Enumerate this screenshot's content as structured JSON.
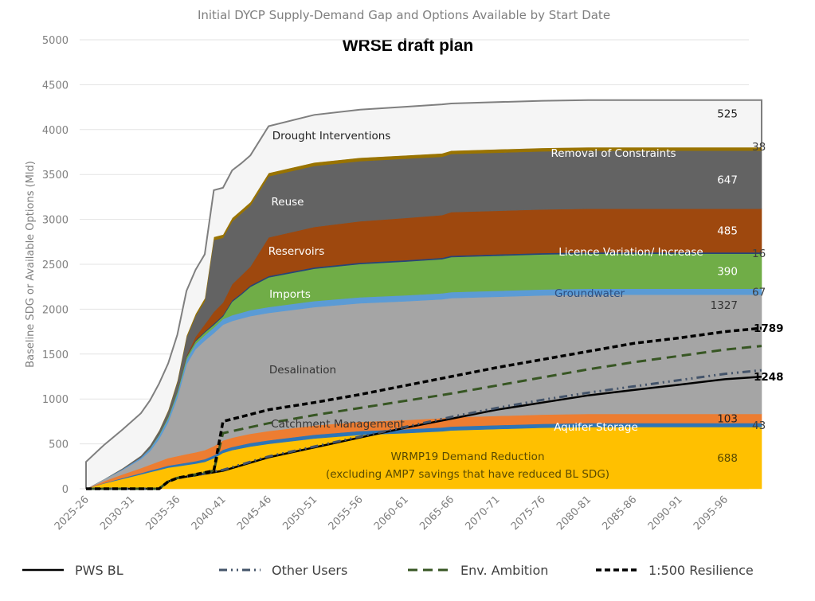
{
  "chart_data": {
    "type": "area",
    "title": "Initial DYCP Supply-Demand Gap and Options Available by Start Date",
    "subtitle": "WRSE draft plan",
    "xlabel": "",
    "ylabel": "Baseline SDG or Available Options (Mld)",
    "ylim": [
      0,
      5000
    ],
    "yticks": [
      0,
      500,
      1000,
      1500,
      2000,
      2500,
      3000,
      3500,
      4000,
      4500,
      5000
    ],
    "grid": true,
    "x_tick_labels": [
      "2025-26",
      "2030-31",
      "2035-36",
      "2040-41",
      "2045-46",
      "2050-51",
      "2055-56",
      "2060-61",
      "2065-66",
      "2070-71",
      "2075-76",
      "2080-81",
      "2085-86",
      "2090-91",
      "2095-96"
    ],
    "x_index": [
      0,
      2,
      4,
      6,
      7,
      8,
      9,
      10,
      11,
      12,
      13,
      14,
      15,
      16,
      17,
      18,
      20,
      25,
      30,
      35,
      39,
      40,
      45,
      50,
      55,
      60,
      74
    ],
    "stacked_series": [
      {
        "name": "WRMP19 Demand Reduction",
        "label": "WRMP19 Demand Reduction",
        "label2": "(excluding AMP7 savings that have reduced BL SDG)",
        "end_value": "688",
        "color": "#ffc000",
        "label_color": "#5a4a00",
        "values": [
          0,
          60,
          110,
          160,
          185,
          210,
          235,
          250,
          265,
          280,
          300,
          340,
          400,
          430,
          450,
          470,
          500,
          560,
          600,
          620,
          640,
          650,
          665,
          680,
          688,
          688,
          688
        ]
      },
      {
        "name": "Aquifer Storage",
        "label": "Aquifer Storage",
        "end_value": "43",
        "color": "#2e75b6",
        "label_color": "#ffffff",
        "values": [
          0,
          5,
          10,
          15,
          18,
          20,
          22,
          24,
          26,
          28,
          30,
          32,
          34,
          36,
          38,
          40,
          40,
          42,
          43,
          43,
          43,
          43,
          43,
          43,
          43,
          43,
          43
        ]
      },
      {
        "name": "Catchment Management",
        "label": "Catchment Management",
        "end_value": "103",
        "color": "#ed7d31",
        "label_color": "#333333",
        "values": [
          0,
          20,
          40,
          55,
          65,
          75,
          85,
          90,
          95,
          98,
          100,
          102,
          103,
          103,
          103,
          103,
          103,
          103,
          103,
          103,
          103,
          103,
          103,
          103,
          103,
          103,
          103
        ]
      },
      {
        "name": "Desalination",
        "label": "Desalination",
        "end_value": "1327",
        "color": "#a5a5a5",
        "label_color": "#333333",
        "values": [
          0,
          20,
          50,
          100,
          150,
          250,
          400,
          650,
          1000,
          1150,
          1220,
          1260,
          1290,
          1300,
          1305,
          1310,
          1315,
          1318,
          1320,
          1322,
          1324,
          1327,
          1327,
          1327,
          1327,
          1327,
          1327
        ]
      },
      {
        "name": "Groundwater",
        "label": "Groundwater",
        "end_value": "67",
        "color": "#5b9bd5",
        "label_color": "#2f4f7f",
        "values": [
          0,
          5,
          10,
          20,
          30,
          40,
          45,
          50,
          55,
          58,
          60,
          62,
          63,
          64,
          65,
          66,
          66,
          67,
          67,
          67,
          67,
          67,
          67,
          67,
          67,
          67,
          67
        ]
      },
      {
        "name": "Imports",
        "label": "Imports",
        "end_value": "390",
        "color": "#70ad47",
        "label_color": "#ffffff",
        "values": [
          0,
          0,
          0,
          0,
          5,
          10,
          15,
          20,
          25,
          30,
          30,
          30,
          30,
          150,
          200,
          260,
          330,
          360,
          370,
          375,
          380,
          390,
          390,
          390,
          390,
          390,
          390
        ]
      },
      {
        "name": "Licence Variation/ Increase",
        "label": "Licence Variation/ Increase",
        "end_value": "16",
        "color": "#264478",
        "label_color": "#ffffff",
        "values": [
          0,
          0,
          0,
          0,
          0,
          2,
          4,
          6,
          8,
          10,
          12,
          14,
          14,
          15,
          15,
          16,
          16,
          16,
          16,
          16,
          16,
          16,
          16,
          16,
          16,
          16,
          16
        ]
      },
      {
        "name": "Reservoirs",
        "label": "Reservoirs",
        "end_value": "485",
        "color": "#9e480e",
        "label_color": "#ffffff",
        "values": [
          0,
          0,
          0,
          0,
          0,
          0,
          0,
          0,
          10,
          40,
          80,
          130,
          140,
          180,
          200,
          210,
          430,
          450,
          460,
          470,
          475,
          485,
          485,
          485,
          485,
          485,
          485
        ]
      },
      {
        "name": "Reuse",
        "label": "Reuse",
        "end_value": "647",
        "color": "#636363",
        "label_color": "#ffffff",
        "values": [
          0,
          0,
          10,
          20,
          30,
          40,
          60,
          100,
          200,
          230,
          260,
          800,
          720,
          700,
          690,
          680,
          680,
          680,
          670,
          660,
          650,
          647,
          647,
          647,
          647,
          647,
          647
        ]
      },
      {
        "name": "Removal of Constraints",
        "label": "Removal of Constraints",
        "end_value": "38",
        "color": "#997300",
        "label_color": "#ffffff",
        "values": [
          0,
          0,
          0,
          0,
          0,
          5,
          10,
          15,
          20,
          25,
          30,
          35,
          38,
          38,
          38,
          38,
          38,
          38,
          38,
          38,
          38,
          38,
          38,
          38,
          38,
          38,
          38
        ]
      },
      {
        "name": "Drought Interventions",
        "label": "Drought Interventions",
        "end_value": "525",
        "color": "#f5f5f5",
        "label_color": "#222222",
        "values": [
          300,
          380,
          430,
          470,
          500,
          520,
          520,
          510,
          500,
          490,
          490,
          520,
          520,
          530,
          520,
          520,
          520,
          530,
          535,
          540,
          545,
          525,
          525,
          525,
          525,
          525,
          525
        ]
      }
    ],
    "line_series": [
      {
        "name": "PWS BL",
        "style": "solid",
        "color": "#000000",
        "end_value": "1248",
        "x": [
          0,
          8,
          9,
          10,
          12,
          15,
          20,
          25,
          30,
          35,
          40,
          45,
          50,
          55,
          60,
          65,
          70,
          74
        ],
        "y": [
          0,
          0,
          80,
          120,
          150,
          200,
          350,
          460,
          570,
          680,
          780,
          880,
          960,
          1040,
          1100,
          1160,
          1220,
          1248
        ]
      },
      {
        "name": "Other Users",
        "style": "dashdot",
        "color": "#44546a",
        "end_value": "",
        "x": [
          0,
          8,
          9,
          10,
          12,
          15,
          20,
          25,
          30,
          35,
          40,
          45,
          50,
          55,
          60,
          65,
          70,
          74
        ],
        "y": [
          0,
          0,
          80,
          120,
          150,
          210,
          360,
          470,
          580,
          690,
          800,
          900,
          990,
          1070,
          1140,
          1210,
          1280,
          1320
        ]
      },
      {
        "name": "Env. Ambition",
        "style": "dash",
        "color": "#375623",
        "end_value": "",
        "x": [
          0,
          8,
          9,
          10,
          14,
          15,
          20,
          25,
          30,
          35,
          40,
          45,
          50,
          55,
          60,
          65,
          70,
          74
        ],
        "y": [
          0,
          0,
          80,
          120,
          200,
          620,
          730,
          820,
          900,
          980,
          1060,
          1150,
          1240,
          1330,
          1410,
          1480,
          1550,
          1590
        ]
      },
      {
        "name": "1:500 Resilience",
        "style": "shortdash",
        "color": "#000000",
        "end_value": "1789",
        "x": [
          0,
          8,
          9,
          10,
          14,
          15,
          20,
          25,
          30,
          35,
          40,
          45,
          50,
          55,
          60,
          65,
          70,
          74
        ],
        "y": [
          0,
          0,
          80,
          120,
          200,
          750,
          880,
          960,
          1050,
          1150,
          1250,
          1350,
          1440,
          1530,
          1620,
          1680,
          1750,
          1789
        ]
      }
    ],
    "legend": {
      "placement": "bottom",
      "items": [
        "PWS BL",
        "Other Users",
        "Env. Ambition",
        "1:500 Resilience"
      ]
    }
  }
}
